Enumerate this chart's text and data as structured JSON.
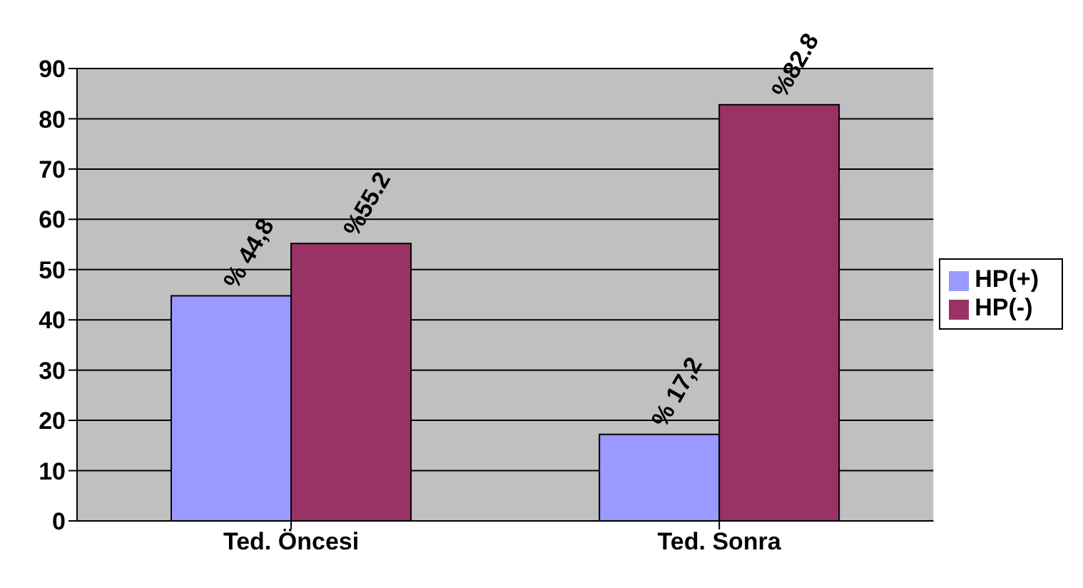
{
  "chart_data": {
    "type": "bar",
    "categories": [
      "Ted. Öncesi",
      "Ted. Sonra"
    ],
    "series": [
      {
        "name": "HP(+)",
        "color": "#9999ff",
        "values": [
          44.8,
          17.2
        ],
        "value_labels": [
          "% 44,8",
          "% 17,2"
        ]
      },
      {
        "name": "HP(-)",
        "color": "#993366",
        "values": [
          55.2,
          82.8
        ],
        "value_labels": [
          "%55.2",
          "%82.8"
        ]
      }
    ],
    "ylim": [
      0,
      90
    ],
    "yticks": [
      0,
      10,
      20,
      30,
      40,
      50,
      60,
      70,
      80,
      90
    ],
    "grid": "y",
    "legend": "right"
  }
}
